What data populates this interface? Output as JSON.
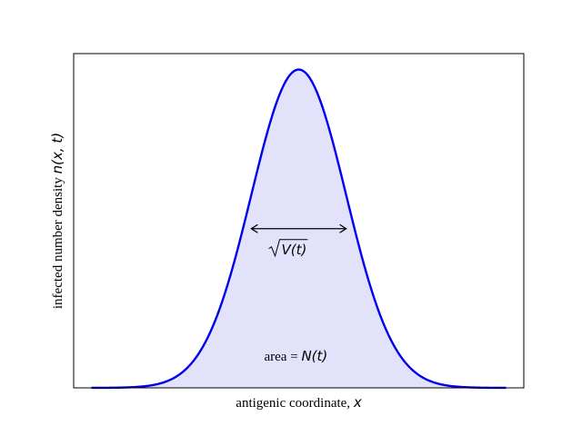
{
  "chart_data": {
    "type": "area",
    "title": "",
    "xlabel": {
      "text": "antigenic coordinate, ",
      "math": "x"
    },
    "ylabel": {
      "text": "infected number density ",
      "math": "n(x, t)"
    },
    "xlim": [
      -3.8,
      3.8
    ],
    "ylim": [
      0,
      1.05
    ],
    "x_ticks": [],
    "y_ticks": [],
    "grid": false,
    "legend": "none",
    "series": [
      {
        "curve": "gaussian",
        "mean": 0,
        "std": 0.8,
        "peak": 1.0,
        "x_range": [
          -3.5,
          3.5
        ],
        "line_color": "#0000ee",
        "fill_color": "#e2e2fb"
      }
    ],
    "annotations": {
      "width_arrow": {
        "x_from": -0.8,
        "x_to": 0.8,
        "y": 0.5,
        "label_math": "V(t)"
      },
      "area_label": {
        "text": "area = ",
        "math": "N(t)",
        "x": 0,
        "y": 0.1
      }
    }
  }
}
